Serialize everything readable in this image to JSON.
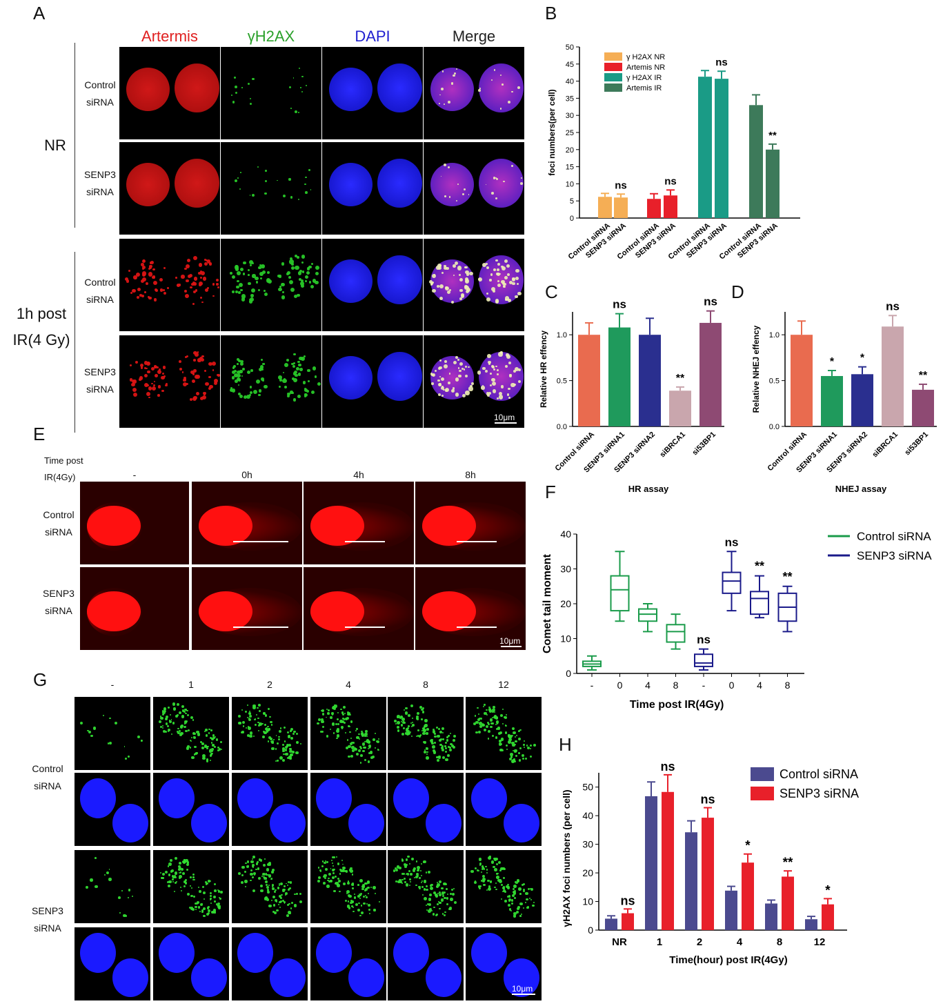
{
  "panel_letters": {
    "A": "A",
    "B": "B",
    "C": "C",
    "D": "D",
    "E": "E",
    "F": "F",
    "G": "G",
    "H": "H"
  },
  "panel_a": {
    "columns": [
      "Artermis",
      "γH2AX",
      "DAPI",
      "Merge"
    ],
    "column_colors": [
      "#e02020",
      "#2aa02a",
      "#2020d0",
      "#222222"
    ],
    "row_labels": [
      [
        "Control",
        "siRNA"
      ],
      [
        "SENP3",
        "siRNA"
      ],
      [
        "Control",
        "siRNA"
      ],
      [
        "SENP3",
        "siRNA"
      ]
    ],
    "group_labels": [
      [
        "NR"
      ],
      [
        "1h post",
        "IR(4 Gy)"
      ]
    ],
    "scale": "10μm"
  },
  "panel_e": {
    "header_lines": [
      "Time post",
      "IR(4Gy)"
    ],
    "columns": [
      "-",
      "0h",
      "4h",
      "8h"
    ],
    "row_labels": [
      [
        "Control",
        "siRNA"
      ],
      [
        "SENP3",
        "siRNA"
      ]
    ],
    "scale": "10μm"
  },
  "panel_g": {
    "columns": [
      "-",
      "1",
      "2",
      "4",
      "8",
      "12"
    ],
    "row_labels": [
      [
        "Control",
        "siRNA"
      ],
      [
        "SENP3",
        "siRNA"
      ]
    ],
    "scale": "10μm"
  },
  "chart_data": [
    {
      "panel": "B",
      "type": "bar",
      "ylabel": "foci numbers(per cell)",
      "ylim": [
        0,
        50
      ],
      "yticks": [
        0,
        5,
        10,
        15,
        20,
        25,
        30,
        35,
        40,
        45,
        50
      ],
      "categories": [
        "Control siRNA",
        "SENP3 siRNA",
        "Control siRNA",
        "SENP3 siRNA",
        "Control siRNA",
        "SENP3 siRNA",
        "Control siRNA",
        "SENP3 siRNA"
      ],
      "values": [
        6.2,
        6.0,
        5.6,
        6.6,
        41.3,
        40.7,
        33.0,
        20.0
      ],
      "errors": [
        1.0,
        1.0,
        1.5,
        1.6,
        1.8,
        2.2,
        3.0,
        1.6
      ],
      "groups": [
        "γ H2AX NR",
        "Artemis NR",
        "γ H2AX IR",
        "Artemis IR"
      ],
      "group_colors": [
        "#f5ae55",
        "#e8202a",
        "#1a9b86",
        "#3d7a5a"
      ],
      "annotations": [
        "",
        "ns",
        "",
        "ns",
        "",
        "ns",
        "",
        "**"
      ],
      "legend": "top-left"
    },
    {
      "panel": "C",
      "type": "bar",
      "ylabel": "Relative HR effency",
      "xlabel": "HR assay",
      "ylim": [
        0,
        1.25
      ],
      "yticks": [
        "0.0",
        "0.5",
        "1.0"
      ],
      "categories": [
        "Control siRNA",
        "SENP3 siRNA1",
        "SENP3 siRNA2",
        "siBRCA1",
        "si53BP1"
      ],
      "values": [
        1.0,
        1.08,
        1.0,
        0.39,
        1.13
      ],
      "errors": [
        0.13,
        0.15,
        0.18,
        0.04,
        0.13
      ],
      "colors": [
        "#e96b4f",
        "#1f9a5c",
        "#2a2f8f",
        "#c9a6ad",
        "#8e4a73"
      ],
      "annotations": [
        "",
        "ns",
        "",
        "**",
        "ns"
      ]
    },
    {
      "panel": "D",
      "type": "bar",
      "ylabel": "Relative NHEJ effency",
      "xlabel": "NHEJ assay",
      "ylim": [
        0,
        1.25
      ],
      "yticks": [
        "0.0",
        "0.5",
        "1.0"
      ],
      "categories": [
        "Control siRNA",
        "SENP3 siRNA1",
        "SENP3 siRNA2",
        "siBRCA1",
        "si53BP1"
      ],
      "values": [
        1.0,
        0.55,
        0.57,
        1.09,
        0.4
      ],
      "errors": [
        0.15,
        0.06,
        0.08,
        0.12,
        0.06
      ],
      "colors": [
        "#e96b4f",
        "#1f9a5c",
        "#2a2f8f",
        "#c9a6ad",
        "#8e4a73"
      ],
      "annotations": [
        "",
        "*",
        "*",
        "ns",
        "**"
      ]
    },
    {
      "panel": "F",
      "type": "box",
      "ylabel": "Comet tail moment",
      "xlabel": "Time post IR(4Gy)",
      "ylim": [
        0,
        40
      ],
      "yticks": [
        0,
        10,
        20,
        30,
        40
      ],
      "categories": [
        "-",
        "0",
        "4",
        "8",
        "-",
        "0",
        "4",
        "8"
      ],
      "series": [
        {
          "name": "Control siRNA",
          "color": "#1a9b4a",
          "boxes": [
            [
              1,
              2,
              2.7,
              3.5,
              5
            ],
            [
              15,
              18,
              24,
              28,
              35
            ],
            [
              12,
              15,
              17,
              18.5,
              20
            ],
            [
              7,
              9,
              12,
              14,
              17
            ]
          ]
        },
        {
          "name": "SENP3 siRNA",
          "color": "#1a1a8a",
          "boxes": [
            [
              1,
              2,
              3,
              5.5,
              7
            ],
            [
              18,
              23,
              26.5,
              29,
              35
            ],
            [
              16,
              17,
              21.5,
              23.5,
              28
            ],
            [
              12,
              15,
              19,
              23,
              25
            ]
          ]
        }
      ],
      "annotations": [
        "",
        "",
        "",
        "",
        "ns",
        "ns",
        "**",
        "**"
      ],
      "legend": "top-right"
    },
    {
      "panel": "H",
      "type": "bar",
      "ylabel": "γH2AX foci numbers (per cell)",
      "xlabel": "Time(hour) post IR(4Gy)",
      "ylim": [
        0,
        55
      ],
      "yticks": [
        0,
        10,
        20,
        30,
        40,
        50
      ],
      "categories": [
        "NR",
        "1",
        "2",
        "4",
        "8",
        "12"
      ],
      "series": [
        {
          "name": "Control siRNA",
          "color": "#4b4a8f",
          "values": [
            4.0,
            46.8,
            34.2,
            13.8,
            9.3,
            3.8
          ],
          "errors": [
            1.0,
            5.0,
            4.0,
            1.5,
            1.2,
            1.0
          ]
        },
        {
          "name": "SENP3 siRNA",
          "color": "#e8202a",
          "values": [
            5.9,
            48.3,
            39.3,
            23.6,
            18.7,
            9.0
          ],
          "errors": [
            1.5,
            6.0,
            3.5,
            3.0,
            2.0,
            2.0
          ]
        }
      ],
      "annotations": [
        "ns",
        "ns",
        "ns",
        "*",
        "**",
        "*"
      ],
      "legend": "top-right"
    }
  ]
}
